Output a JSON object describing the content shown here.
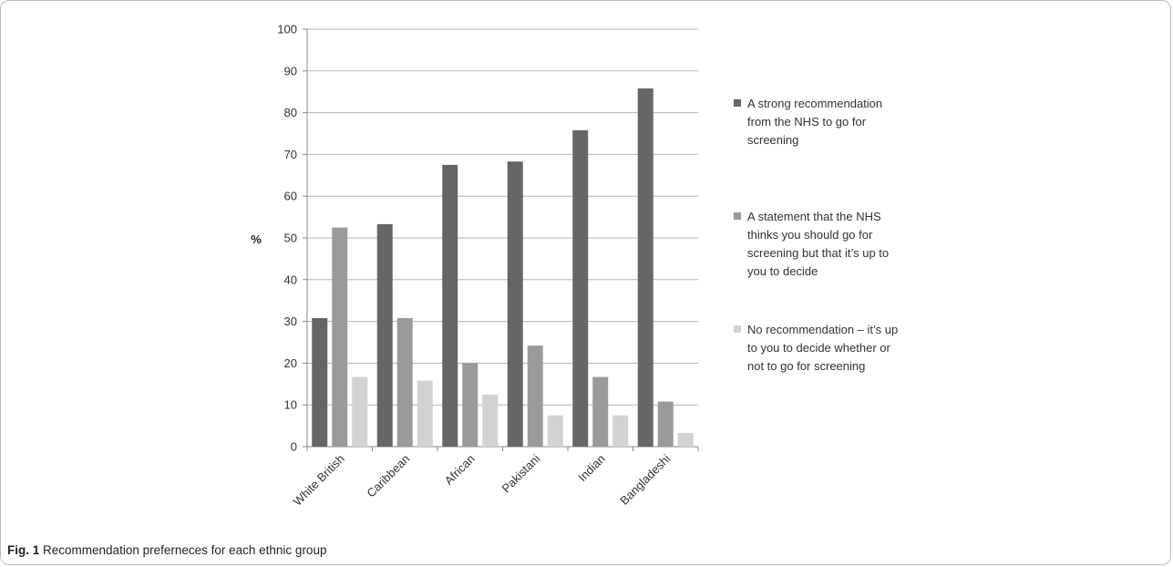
{
  "caption": {
    "label": "Fig. 1",
    "text": "Recommendation preferneces for each ethnic group"
  },
  "chart_data": {
    "type": "bar",
    "title": "",
    "xlabel": "",
    "ylabel": "%",
    "ylim": [
      0,
      100
    ],
    "yticks": [
      "0",
      "10",
      "20",
      "30",
      "40",
      "50",
      "60",
      "70",
      "80",
      "90",
      "100"
    ],
    "grid": true,
    "legend_position": "right",
    "categories": [
      "White British",
      "Caribbean",
      "African",
      "Pakistani",
      "Indian",
      "Bangladeshi"
    ],
    "series": [
      {
        "name": "A strong recommendation from the NHS to go for screening",
        "legend_lines": [
          "A strong recommendation",
          "from the NHS to go for",
          "screening"
        ],
        "color": "#666666",
        "values": [
          30.8,
          53.3,
          67.5,
          68.3,
          75.8,
          85.8
        ]
      },
      {
        "name": "A statement that the NHS thinks you should go for screening but that it’s up to you to decide",
        "legend_lines": [
          "A statement that the NHS",
          "thinks you should go for",
          "screening but that it’s up to",
          "you to decide"
        ],
        "color": "#9a9a9a",
        "values": [
          52.5,
          30.8,
          20.0,
          24.2,
          16.7,
          10.8
        ]
      },
      {
        "name": "No recommendation – it’s up to you to decide whether or not to go for screening",
        "legend_lines": [
          "No recommendation – it’s up",
          "to you to decide whether or",
          "not to go for screening"
        ],
        "color": "#d2d2d2",
        "values": [
          16.7,
          15.8,
          12.5,
          7.5,
          7.5,
          3.3
        ]
      }
    ]
  }
}
